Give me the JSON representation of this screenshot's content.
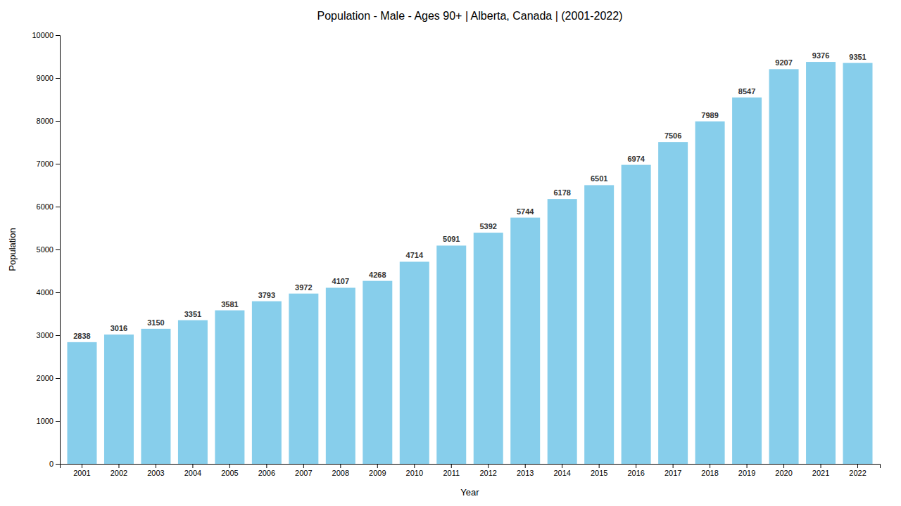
{
  "chart_data": {
    "type": "bar",
    "title": "Population - Male - Ages 90+ | Alberta, Canada |  (2001-2022)",
    "x_label": "Year",
    "y_label": "Population",
    "categories": [
      "2001",
      "2002",
      "2003",
      "2004",
      "2005",
      "2006",
      "2007",
      "2008",
      "2009",
      "2010",
      "2011",
      "2012",
      "2013",
      "2014",
      "2015",
      "2016",
      "2017",
      "2018",
      "2019",
      "2020",
      "2021",
      "2022"
    ],
    "values": [
      2838,
      3016,
      3150,
      3351,
      3581,
      3793,
      3972,
      4107,
      4268,
      4714,
      5091,
      5392,
      5744,
      6178,
      6501,
      6974,
      7506,
      7989,
      8547,
      9207,
      9376,
      9351
    ],
    "color": "#87CEEB",
    "ylim": [
      0,
      10000
    ],
    "yticks": [
      0,
      1000,
      2000,
      3000,
      4000,
      5000,
      6000,
      7000,
      8000,
      9000,
      10000
    ],
    "grid": false,
    "data_labels": true
  }
}
